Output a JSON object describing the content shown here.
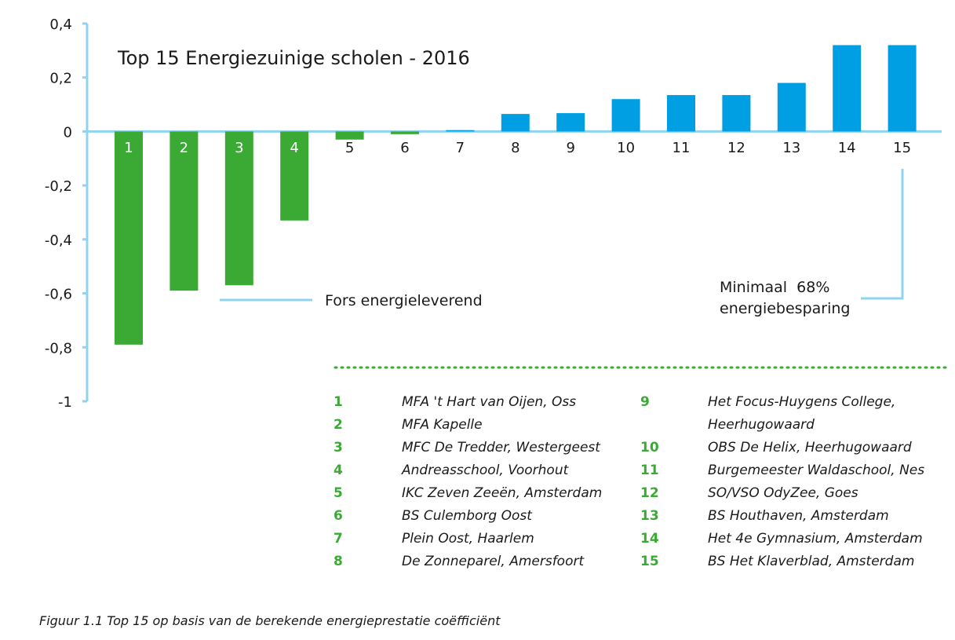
{
  "chart_data": {
    "type": "bar",
    "title": "Top 15 Energiezuinige scholen - 2016",
    "categories": [
      "1",
      "2",
      "3",
      "4",
      "5",
      "6",
      "7",
      "8",
      "9",
      "10",
      "11",
      "12",
      "13",
      "14",
      "15"
    ],
    "values": [
      -0.79,
      -0.59,
      -0.57,
      -0.33,
      -0.03,
      -0.01,
      0.005,
      0.065,
      0.068,
      0.12,
      0.135,
      0.135,
      0.18,
      0.32,
      0.32
    ],
    "ylim": [
      -1,
      0.4
    ],
    "yticks": [
      0.4,
      0.2,
      0,
      -0.2,
      -0.4,
      -0.6,
      -0.8,
      -1
    ],
    "ytick_labels": [
      "0,4",
      "0,2",
      "0",
      "-0,2",
      "-0,4",
      "-0,6",
      "-0,8",
      "-1"
    ],
    "xlabel": "",
    "ylabel": "",
    "grid": false,
    "colors": {
      "green": "#3aaa35",
      "blue": "#009fe3",
      "axis": "#8fd3f0"
    },
    "annotations": [
      {
        "text": "Fors energieleverend"
      },
      {
        "text_lines": [
          "Minimaal  68%",
          "energiebesparing"
        ]
      }
    ]
  },
  "legend": {
    "left": [
      {
        "num": "1",
        "lines": [
          "MFA 't Hart van Oijen, Oss"
        ]
      },
      {
        "num": "2",
        "lines": [
          "MFA Kapelle"
        ]
      },
      {
        "num": "3",
        "lines": [
          "MFC De Tredder, Westergeest"
        ]
      },
      {
        "num": "4",
        "lines": [
          "Andreasschool, Voorhout"
        ]
      },
      {
        "num": "5",
        "lines": [
          "IKC Zeven Zeeën, Amsterdam"
        ]
      },
      {
        "num": "6",
        "lines": [
          "BS Culemborg Oost"
        ]
      },
      {
        "num": "7",
        "lines": [
          "Plein Oost, Haarlem"
        ]
      },
      {
        "num": "8",
        "lines": [
          "De Zonneparel, Amersfoort"
        ]
      }
    ],
    "right": [
      {
        "num": "9",
        "lines": [
          "Het Focus-Huygens College,",
          "Heerhugowaard"
        ]
      },
      {
        "num": "10",
        "lines": [
          "OBS De Helix, Heerhugowaard"
        ]
      },
      {
        "num": "11",
        "lines": [
          "Burgemeester Waldaschool, Nes"
        ]
      },
      {
        "num": "12",
        "lines": [
          "SO/VSO OdyZee, Goes"
        ]
      },
      {
        "num": "13",
        "lines": [
          "BS Houthaven, Amsterdam"
        ]
      },
      {
        "num": "14",
        "lines": [
          "Het 4e Gymnasium, Amsterdam"
        ]
      },
      {
        "num": "15",
        "lines": [
          "BS Het Klaverblad, Amsterdam"
        ]
      }
    ]
  },
  "caption": "Figuur 1.1 Top 15 op basis van de berekende energieprestatie coëfficiënt"
}
